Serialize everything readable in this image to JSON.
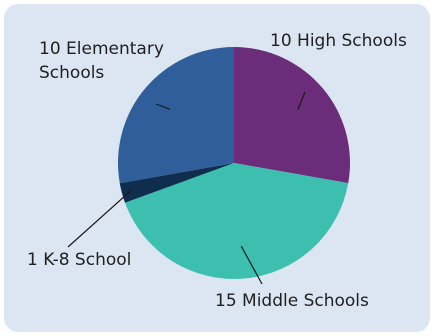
{
  "chart_data": {
    "type": "pie",
    "title": "",
    "categories": [
      "High Schools",
      "Middle Schools",
      "K-8 School",
      "Elementary Schools"
    ],
    "values": [
      10,
      15,
      1,
      10
    ],
    "colors": [
      "#6b2c7a",
      "#3dbfb0",
      "#0f2d4d",
      "#2f5e9a"
    ],
    "labels": [
      {
        "line1": "10 High Schools",
        "line2": ""
      },
      {
        "line1": "15 Middle Schools",
        "line2": ""
      },
      {
        "line1": "1 K-8 School",
        "line2": ""
      },
      {
        "line1": "10 Elementary",
        "line2": "Schools"
      }
    ],
    "legend": "none"
  }
}
